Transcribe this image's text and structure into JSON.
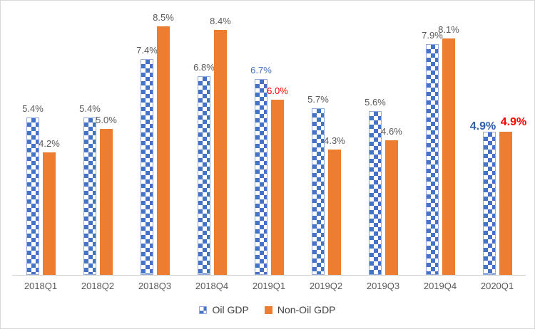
{
  "chart_data": {
    "type": "bar",
    "categories": [
      "2018Q1",
      "2018Q2",
      "2018Q3",
      "2018Q4",
      "2019Q1",
      "2019Q2",
      "2019Q3",
      "2019Q4",
      "2020Q1"
    ],
    "series": [
      {
        "name": "Oil GDP",
        "values": [
          5.4,
          5.4,
          7.4,
          6.8,
          6.7,
          5.7,
          5.6,
          7.9,
          4.9
        ],
        "labels": [
          "5.4%",
          "5.4%",
          "7.4%",
          "6.8%",
          "6.7%",
          "5.7%",
          "5.6%",
          "7.9%",
          "4.9%"
        ],
        "label_styles": [
          "default",
          "default",
          "default",
          "default",
          "blue",
          "default",
          "default",
          "default",
          "bold-blue"
        ]
      },
      {
        "name": "Non-Oil GDP",
        "values": [
          4.2,
          5.0,
          8.5,
          8.4,
          6.0,
          4.3,
          4.6,
          8.1,
          4.9
        ],
        "labels": [
          "4.2%",
          "5.0%",
          "8.5%",
          "8.4%",
          "6.0%",
          "4.3%",
          "4.6%",
          "8.1%",
          "4.9%"
        ],
        "label_styles": [
          "default",
          "default",
          "default",
          "default",
          "red",
          "default",
          "default",
          "default",
          "bold-red"
        ]
      }
    ],
    "value_suffix": "%",
    "title": "",
    "xlabel": "",
    "ylabel": "",
    "ylim": [
      0,
      9
    ],
    "grid": false,
    "legend_position": "bottom"
  },
  "legend": {
    "items": [
      {
        "label": "Oil GDP",
        "swatch": "blue-checker-swatch"
      },
      {
        "label": "Non-Oil GDP",
        "swatch": "orange-square-swatch"
      }
    ]
  },
  "colors": {
    "oil_bar": "#4472C4",
    "oil_bar_border": "#8FAADC",
    "nonoil_bar": "#ED7D31",
    "label_default": "#595959",
    "label_blue": "#4472C4",
    "label_red": "#FF0000",
    "axis_line": "#D0CECE",
    "chart_border": "#D9D9D9"
  }
}
